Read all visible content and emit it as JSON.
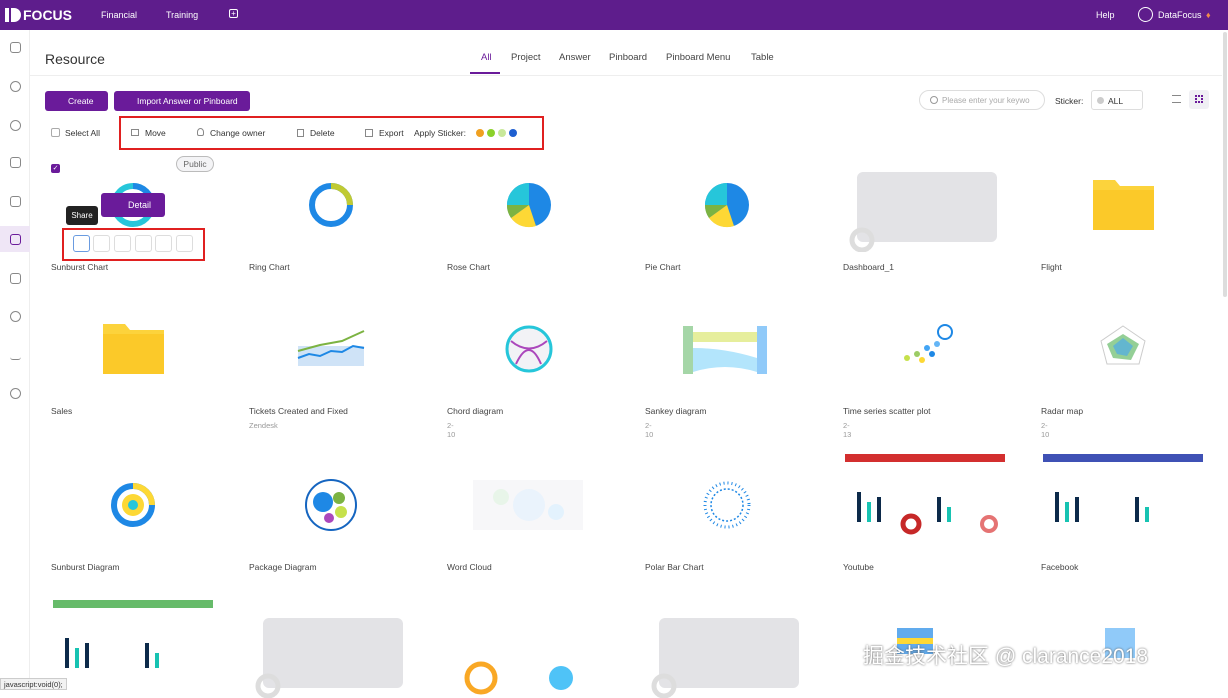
{
  "header": {
    "logo": "FOCUS",
    "nav": [
      "Financial",
      "Training"
    ],
    "help": "Help",
    "user": "DataFocus"
  },
  "page": {
    "title": "Resource",
    "tabs": [
      "All",
      "Project",
      "Answer",
      "Pinboard",
      "Pinboard Menu",
      "Table"
    ],
    "create": "Create",
    "import": "Import Answer or Pinboard",
    "search_placeholder": "Please enter your keywo",
    "sticker_label": "Sticker:",
    "sticker_value": "ALL"
  },
  "toolbar": {
    "select_all": "Select All",
    "move": "Move",
    "change_owner": "Change owner",
    "delete": "Delete",
    "export": "Export",
    "apply_sticker": "Apply Sticker:"
  },
  "selected_card": {
    "badge": "Public",
    "detail": "Detail",
    "tooltip": "Share"
  },
  "cards": [
    {
      "title": "Sunburst Chart"
    },
    {
      "title": "Ring Chart"
    },
    {
      "title": "Rose Chart"
    },
    {
      "title": "Pie Chart"
    },
    {
      "title": "Dashboard_1"
    },
    {
      "title": "Flight"
    },
    {
      "title": "Sales"
    },
    {
      "title": "Tickets Created and Fixed",
      "subtitle": "Zendesk"
    },
    {
      "title": "Chord diagram",
      "subtitle": "2-10"
    },
    {
      "title": "Sankey diagram",
      "subtitle": "2-10"
    },
    {
      "title": "Time series scatter plot",
      "subtitle": "2-13"
    },
    {
      "title": "Radar map",
      "subtitle": "2-10"
    },
    {
      "title": "Sunburst Diagram"
    },
    {
      "title": "Package Diagram"
    },
    {
      "title": "Word Cloud"
    },
    {
      "title": "Polar Bar Chart"
    },
    {
      "title": "Youtube"
    },
    {
      "title": "Facebook"
    }
  ],
  "watermark": "掘金技术社区 @ clarance2018",
  "status": "javascript:void(0);"
}
